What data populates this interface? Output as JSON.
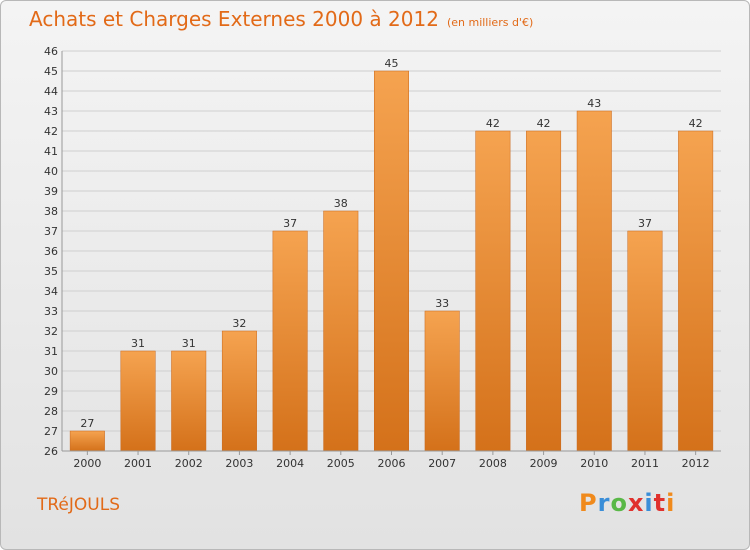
{
  "header": {
    "title": "Achats et Charges Externes 2000 à 2012",
    "unit": "(en milliers d'€)"
  },
  "commune": "TRéJOULS",
  "brand": {
    "name": "Proxiti",
    "letter_colors": [
      "#f08a1c",
      "#3a8ed8",
      "#59b847",
      "#e0312d",
      "#3a8ed8",
      "#e0312d",
      "#f08a1c"
    ]
  },
  "colors": {
    "bar_top": "#f5a350",
    "bar_bottom": "#d4711a",
    "title": "#e26a18",
    "grid": "#cfcfcf"
  },
  "chart_data": {
    "type": "bar",
    "title": "Achats et Charges Externes 2000 à 2012",
    "categories": [
      "2000",
      "2001",
      "2002",
      "2003",
      "2004",
      "2005",
      "2006",
      "2007",
      "2008",
      "2009",
      "2010",
      "2011",
      "2012"
    ],
    "values": [
      27,
      31,
      31,
      32,
      37,
      38,
      45,
      33,
      42,
      42,
      43,
      37,
      42
    ],
    "ylim": [
      26,
      46
    ],
    "yticks": [
      26,
      27,
      28,
      29,
      30,
      31,
      32,
      33,
      34,
      35,
      36,
      37,
      38,
      39,
      40,
      41,
      42,
      43,
      44,
      45,
      46
    ],
    "grid": true
  }
}
